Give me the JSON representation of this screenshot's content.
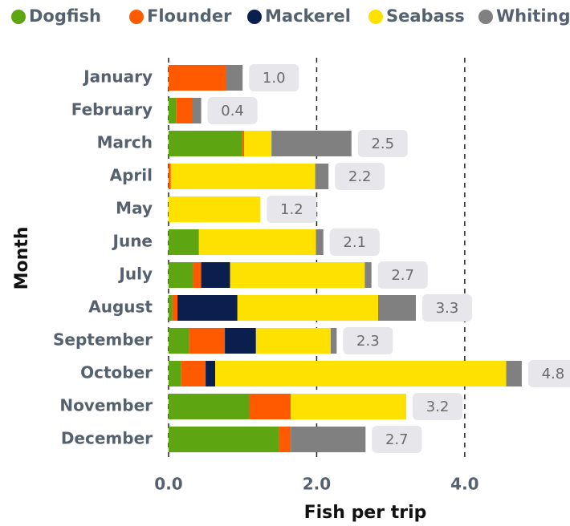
{
  "chart_data": {
    "type": "stacked-bar-horizontal",
    "x_label": "Fish per trip",
    "y_label": "Month",
    "categories": [
      "January",
      "February",
      "March",
      "April",
      "May",
      "June",
      "July",
      "August",
      "September",
      "October",
      "November",
      "December"
    ],
    "series": [
      {
        "name": "Dogfish",
        "color": "#5ea512",
        "values": [
          0,
          0.1,
          0.99,
          0,
          0,
          0.41,
          0.33,
          0.05,
          0.28,
          0.17,
          1.09,
          1.49
        ]
      },
      {
        "name": "Flounder",
        "color": "#ff5a00",
        "values": [
          0.77,
          0.22,
          0.03,
          0.03,
          0,
          0,
          0.11,
          0.07,
          0.48,
          0.33,
          0.56,
          0.16
        ]
      },
      {
        "name": "Mackerel",
        "color": "#0b1f4f",
        "values": [
          0,
          0,
          0,
          0,
          0,
          0,
          0.39,
          0.81,
          0.42,
          0.13,
          0,
          0
        ]
      },
      {
        "name": "Seabass",
        "color": "#ffe100",
        "values": [
          0,
          0,
          0.37,
          1.95,
          1.24,
          1.58,
          1.82,
          1.9,
          1.01,
          3.93,
          1.56,
          0
        ]
      },
      {
        "name": "Whiting",
        "color": "#808080",
        "values": [
          0.23,
          0.12,
          1.08,
          0.18,
          0,
          0.1,
          0.09,
          0.51,
          0.08,
          0.21,
          0,
          1.01
        ]
      }
    ],
    "total_labels": [
      "1.0",
      "0.4",
      "2.5",
      "2.2",
      "1.2",
      "2.1",
      "2.7",
      "3.3",
      "2.3",
      "4.8",
      "3.2",
      "2.7"
    ],
    "xlim": [
      0,
      5.4
    ],
    "xticks": [
      {
        "value": 0,
        "label": "0.0"
      },
      {
        "value": 2,
        "label": "2.0"
      },
      {
        "value": 4,
        "label": "4.0"
      }
    ],
    "grid": true,
    "legend": "top"
  }
}
